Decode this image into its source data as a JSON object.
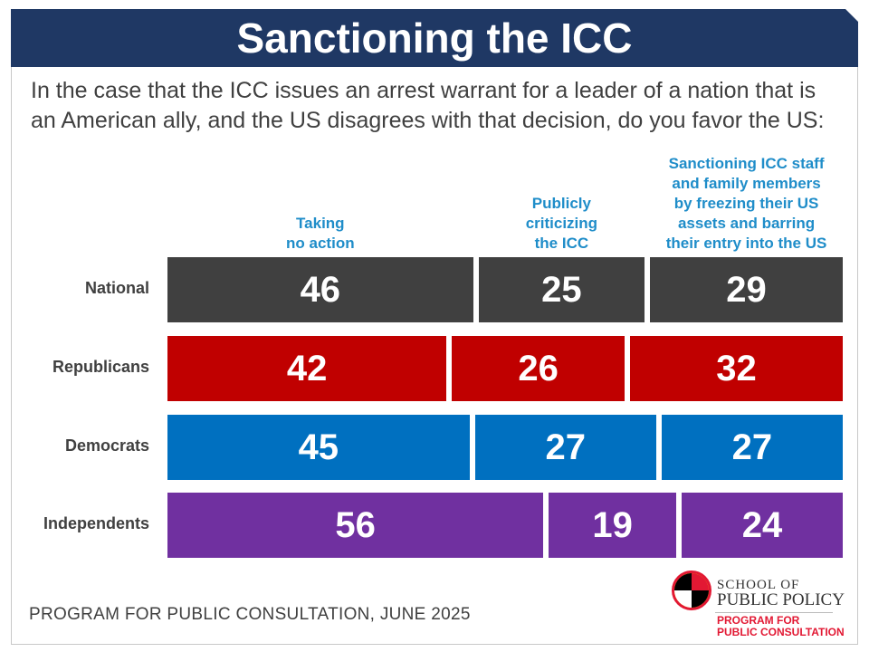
{
  "title": "Sanctioning the ICC",
  "question": "In the case that the ICC issues an arrest warrant for a leader of a nation that is an American ally, and the US disagrees with that decision, do you favor the US:",
  "footer": "PROGRAM FOR PUBLIC CONSULTATION, JUNE 2025",
  "logo": {
    "line1": "SCHOOL OF",
    "line2": "PUBLIC POLICY",
    "line3": "PROGRAM FOR",
    "line4": "PUBLIC CONSULTATION"
  },
  "colors": {
    "title_bar": "#1f3864",
    "header_text": "#1f8dc9",
    "National": "#404040",
    "Republicans": "#c00000",
    "Democrats": "#0070c0",
    "Independents": "#7030a0"
  },
  "chart_data": {
    "type": "bar",
    "orientation": "horizontal",
    "stacked": true,
    "categories": [
      "National",
      "Republicans",
      "Democrats",
      "Independents"
    ],
    "series": [
      {
        "name": "Taking no action",
        "values": [
          46,
          42,
          45,
          56
        ]
      },
      {
        "name": "Publicly criticizing the ICC",
        "values": [
          25,
          26,
          27,
          19
        ]
      },
      {
        "name": "Sanctioning ICC staff and family members by freezing their US assets and barring their entry into the US",
        "values": [
          29,
          32,
          27,
          24
        ]
      }
    ],
    "series_headers": [
      [
        "Taking",
        "no action"
      ],
      [
        "Publicly",
        "criticizing",
        "the ICC"
      ],
      [
        "Sanctioning ICC staff",
        "and family members",
        "by freezing their US",
        "assets and barring",
        "their entry into the US"
      ]
    ],
    "data_labels": true
  }
}
